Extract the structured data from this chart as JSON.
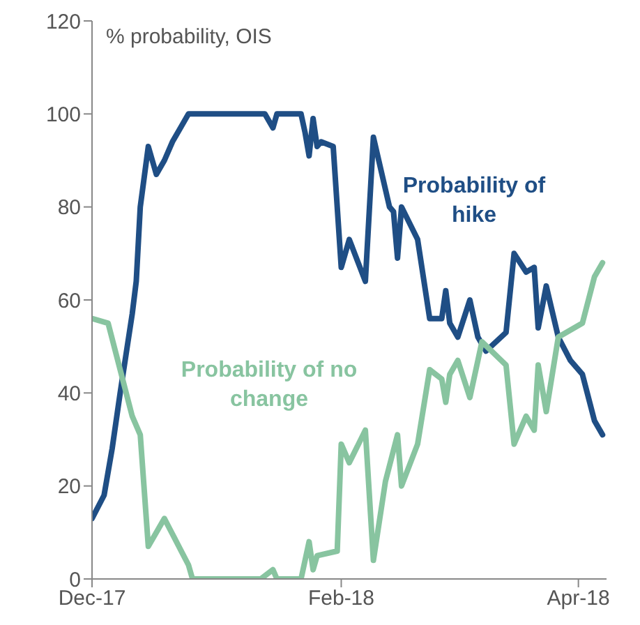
{
  "chart_data": {
    "type": "line",
    "ylabel": "% probability, OIS",
    "xlim": [
      "2017-12-01",
      "2018-04-08"
    ],
    "xticks": [
      {
        "value": "2017-12-01",
        "label": "Dec-17"
      },
      {
        "value": "2018-02-01",
        "label": "Feb-18"
      },
      {
        "value": "2018-04-01",
        "label": "Apr-18"
      }
    ],
    "ylim": [
      0,
      120
    ],
    "yticks": [
      0,
      20,
      40,
      60,
      80,
      100,
      120
    ],
    "grid": false,
    "legend": false,
    "marker": "none",
    "line_style": "solid",
    "series": [
      {
        "name": "Probability of hike",
        "color": "#1f4e85",
        "x": [
          "2017-12-01",
          "2017-12-04",
          "2017-12-06",
          "2017-12-08",
          "2017-12-11",
          "2017-12-12",
          "2017-12-13",
          "2017-12-15",
          "2017-12-17",
          "2017-12-19",
          "2017-12-21",
          "2017-12-25",
          "2018-01-13",
          "2018-01-15",
          "2018-01-16",
          "2018-01-22",
          "2018-01-23",
          "2018-01-24",
          "2018-01-25",
          "2018-01-26",
          "2018-01-27",
          "2018-01-30",
          "2018-02-01",
          "2018-02-03",
          "2018-02-07",
          "2018-02-09",
          "2018-02-13",
          "2018-02-14",
          "2018-02-15",
          "2018-02-16",
          "2018-02-20",
          "2018-02-23",
          "2018-02-26",
          "2018-02-27",
          "2018-02-28",
          "2018-03-02",
          "2018-03-05",
          "2018-03-07",
          "2018-03-09",
          "2018-03-14",
          "2018-03-16",
          "2018-03-19",
          "2018-03-21",
          "2018-03-22",
          "2018-03-24",
          "2018-03-27",
          "2018-03-30",
          "2018-04-02",
          "2018-04-05",
          "2018-04-07"
        ],
        "values": [
          13,
          18,
          28,
          40,
          57,
          64,
          80,
          93,
          87,
          90,
          94,
          100,
          100,
          97,
          100,
          100,
          96,
          91,
          99,
          93,
          94,
          93,
          67,
          73,
          64,
          95,
          80,
          79,
          69,
          80,
          73,
          56,
          56,
          62,
          55,
          52,
          60,
          52,
          49,
          53,
          70,
          66,
          67,
          54,
          63,
          52,
          47,
          44,
          34,
          31
        ]
      },
      {
        "name": "Probability of no change",
        "color": "#88c4a0",
        "x": [
          "2017-12-01",
          "2017-12-05",
          "2017-12-11",
          "2017-12-13",
          "2017-12-15",
          "2017-12-19",
          "2017-12-25",
          "2017-12-26",
          "2018-01-12",
          "2018-01-15",
          "2018-01-16",
          "2018-01-22",
          "2018-01-24",
          "2018-01-25",
          "2018-01-26",
          "2018-01-31",
          "2018-02-01",
          "2018-02-03",
          "2018-02-07",
          "2018-02-09",
          "2018-02-12",
          "2018-02-15",
          "2018-02-16",
          "2018-02-20",
          "2018-02-23",
          "2018-02-26",
          "2018-02-27",
          "2018-02-28",
          "2018-03-02",
          "2018-03-05",
          "2018-03-08",
          "2018-03-14",
          "2018-03-16",
          "2018-03-19",
          "2018-03-21",
          "2018-03-22",
          "2018-03-24",
          "2018-03-27",
          "2018-04-02",
          "2018-04-05",
          "2018-04-07"
        ],
        "values": [
          56,
          55,
          35,
          31,
          7,
          13,
          3,
          0,
          0,
          2,
          0,
          0,
          8,
          2,
          5,
          6,
          29,
          25,
          32,
          4,
          21,
          31,
          20,
          29,
          45,
          43,
          38,
          44,
          47,
          39,
          51,
          46,
          29,
          35,
          32,
          46,
          36,
          52,
          55,
          65,
          68
        ]
      }
    ]
  }
}
